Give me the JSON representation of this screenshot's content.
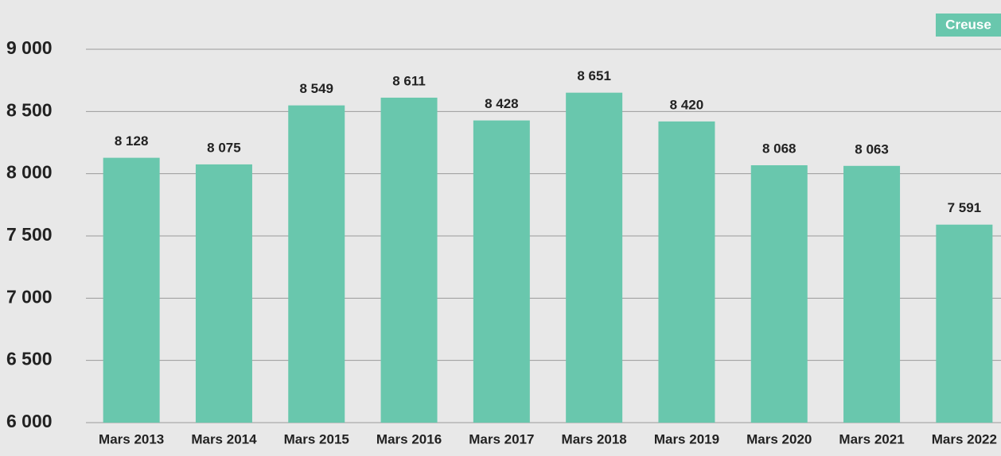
{
  "chart_data": {
    "type": "bar",
    "categories": [
      "Mars 2013",
      "Mars 2014",
      "Mars 2015",
      "Mars 2016",
      "Mars 2017",
      "Mars 2018",
      "Mars 2019",
      "Mars 2020",
      "Mars 2021",
      "Mars 2022"
    ],
    "series": [
      {
        "name": "Creuse",
        "color": "#69c7ad",
        "values": [
          8128,
          8075,
          8549,
          8611,
          8428,
          8651,
          8420,
          8068,
          8063,
          7591
        ],
        "value_labels": [
          "8 128",
          "8 075",
          "8 549",
          "8 611",
          "8 428",
          "8 651",
          "8 420",
          "8 068",
          "8 063",
          "7 591"
        ]
      }
    ],
    "ylim": [
      6000,
      9000
    ],
    "yticks": [
      {
        "value": 6000,
        "label": "6 000"
      },
      {
        "value": 6500,
        "label": "6 500"
      },
      {
        "value": 7000,
        "label": "7 000"
      },
      {
        "value": 7500,
        "label": "7 500"
      },
      {
        "value": 8000,
        "label": "8 000"
      },
      {
        "value": 8500,
        "label": "8 500"
      },
      {
        "value": 9000,
        "label": "9 000"
      }
    ],
    "grid": true,
    "legend": "top-right"
  }
}
